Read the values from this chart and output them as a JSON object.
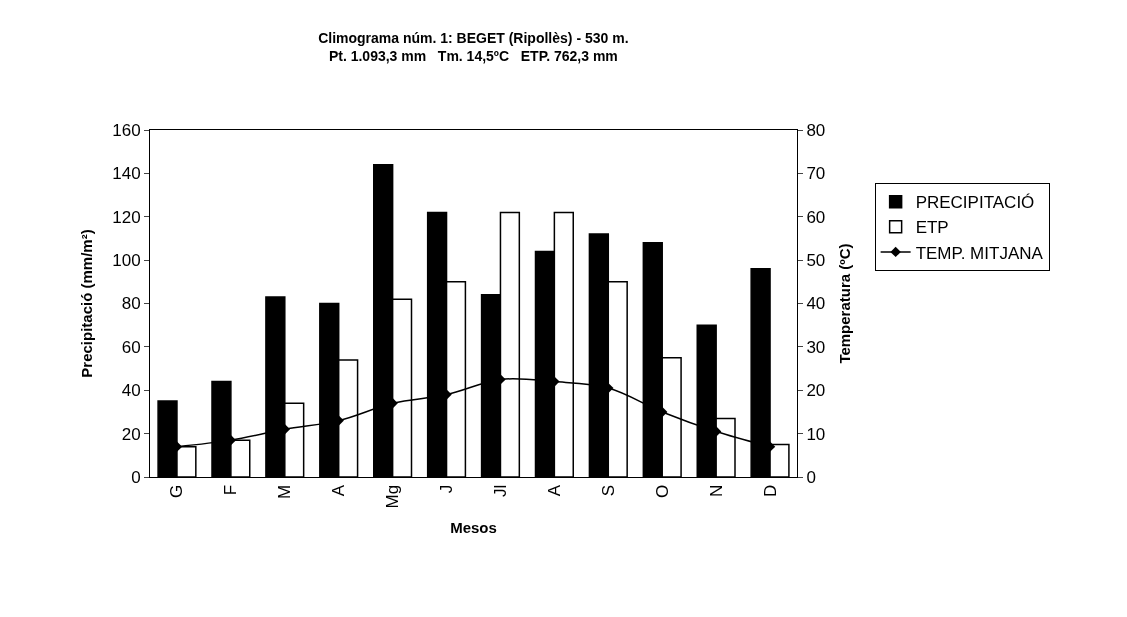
{
  "chart_data": {
    "type": "bar",
    "title": "Climograma núm. 1: BEGET (Ripollès) - 530 m.",
    "subtitle": "Pt. 1.093,3 mm   Tm. 14,5ºC   ETP. 762,3 mm",
    "xlabel": "Mesos",
    "ylabel": "Precipitació (mm/m²)",
    "y2label": "Temperatura (ºC)",
    "categories": [
      "G",
      "F",
      "M",
      "A",
      "Mg",
      "J",
      "Jl",
      "A",
      "S",
      "O",
      "N",
      "D"
    ],
    "series": [
      {
        "name": "PRECIPITACIÓ",
        "color": "#000000",
        "values": [
          35,
          44,
          83,
          80,
          144,
          122,
          84,
          104,
          112,
          108,
          70,
          96
        ]
      },
      {
        "name": "ETP",
        "color": "#ffffff",
        "values": [
          14,
          17,
          34,
          54,
          82,
          90,
          122,
          122,
          90,
          55,
          27,
          15
        ]
      },
      {
        "name": "TEMP. MITJANA",
        "type": "line",
        "axis": "y2",
        "color": "#000000",
        "marker": "diamond",
        "values": [
          7,
          8.5,
          11,
          13,
          17,
          19,
          22.5,
          22,
          20.5,
          15,
          10.5,
          7
        ]
      }
    ],
    "ylim": [
      0,
      160
    ],
    "yticks": [
      0,
      20,
      40,
      60,
      80,
      100,
      120,
      140,
      160
    ],
    "y2lim": [
      0,
      80
    ],
    "y2ticks": [
      0,
      10,
      20,
      30,
      40,
      50,
      60,
      70,
      80
    ],
    "legend": "right"
  }
}
